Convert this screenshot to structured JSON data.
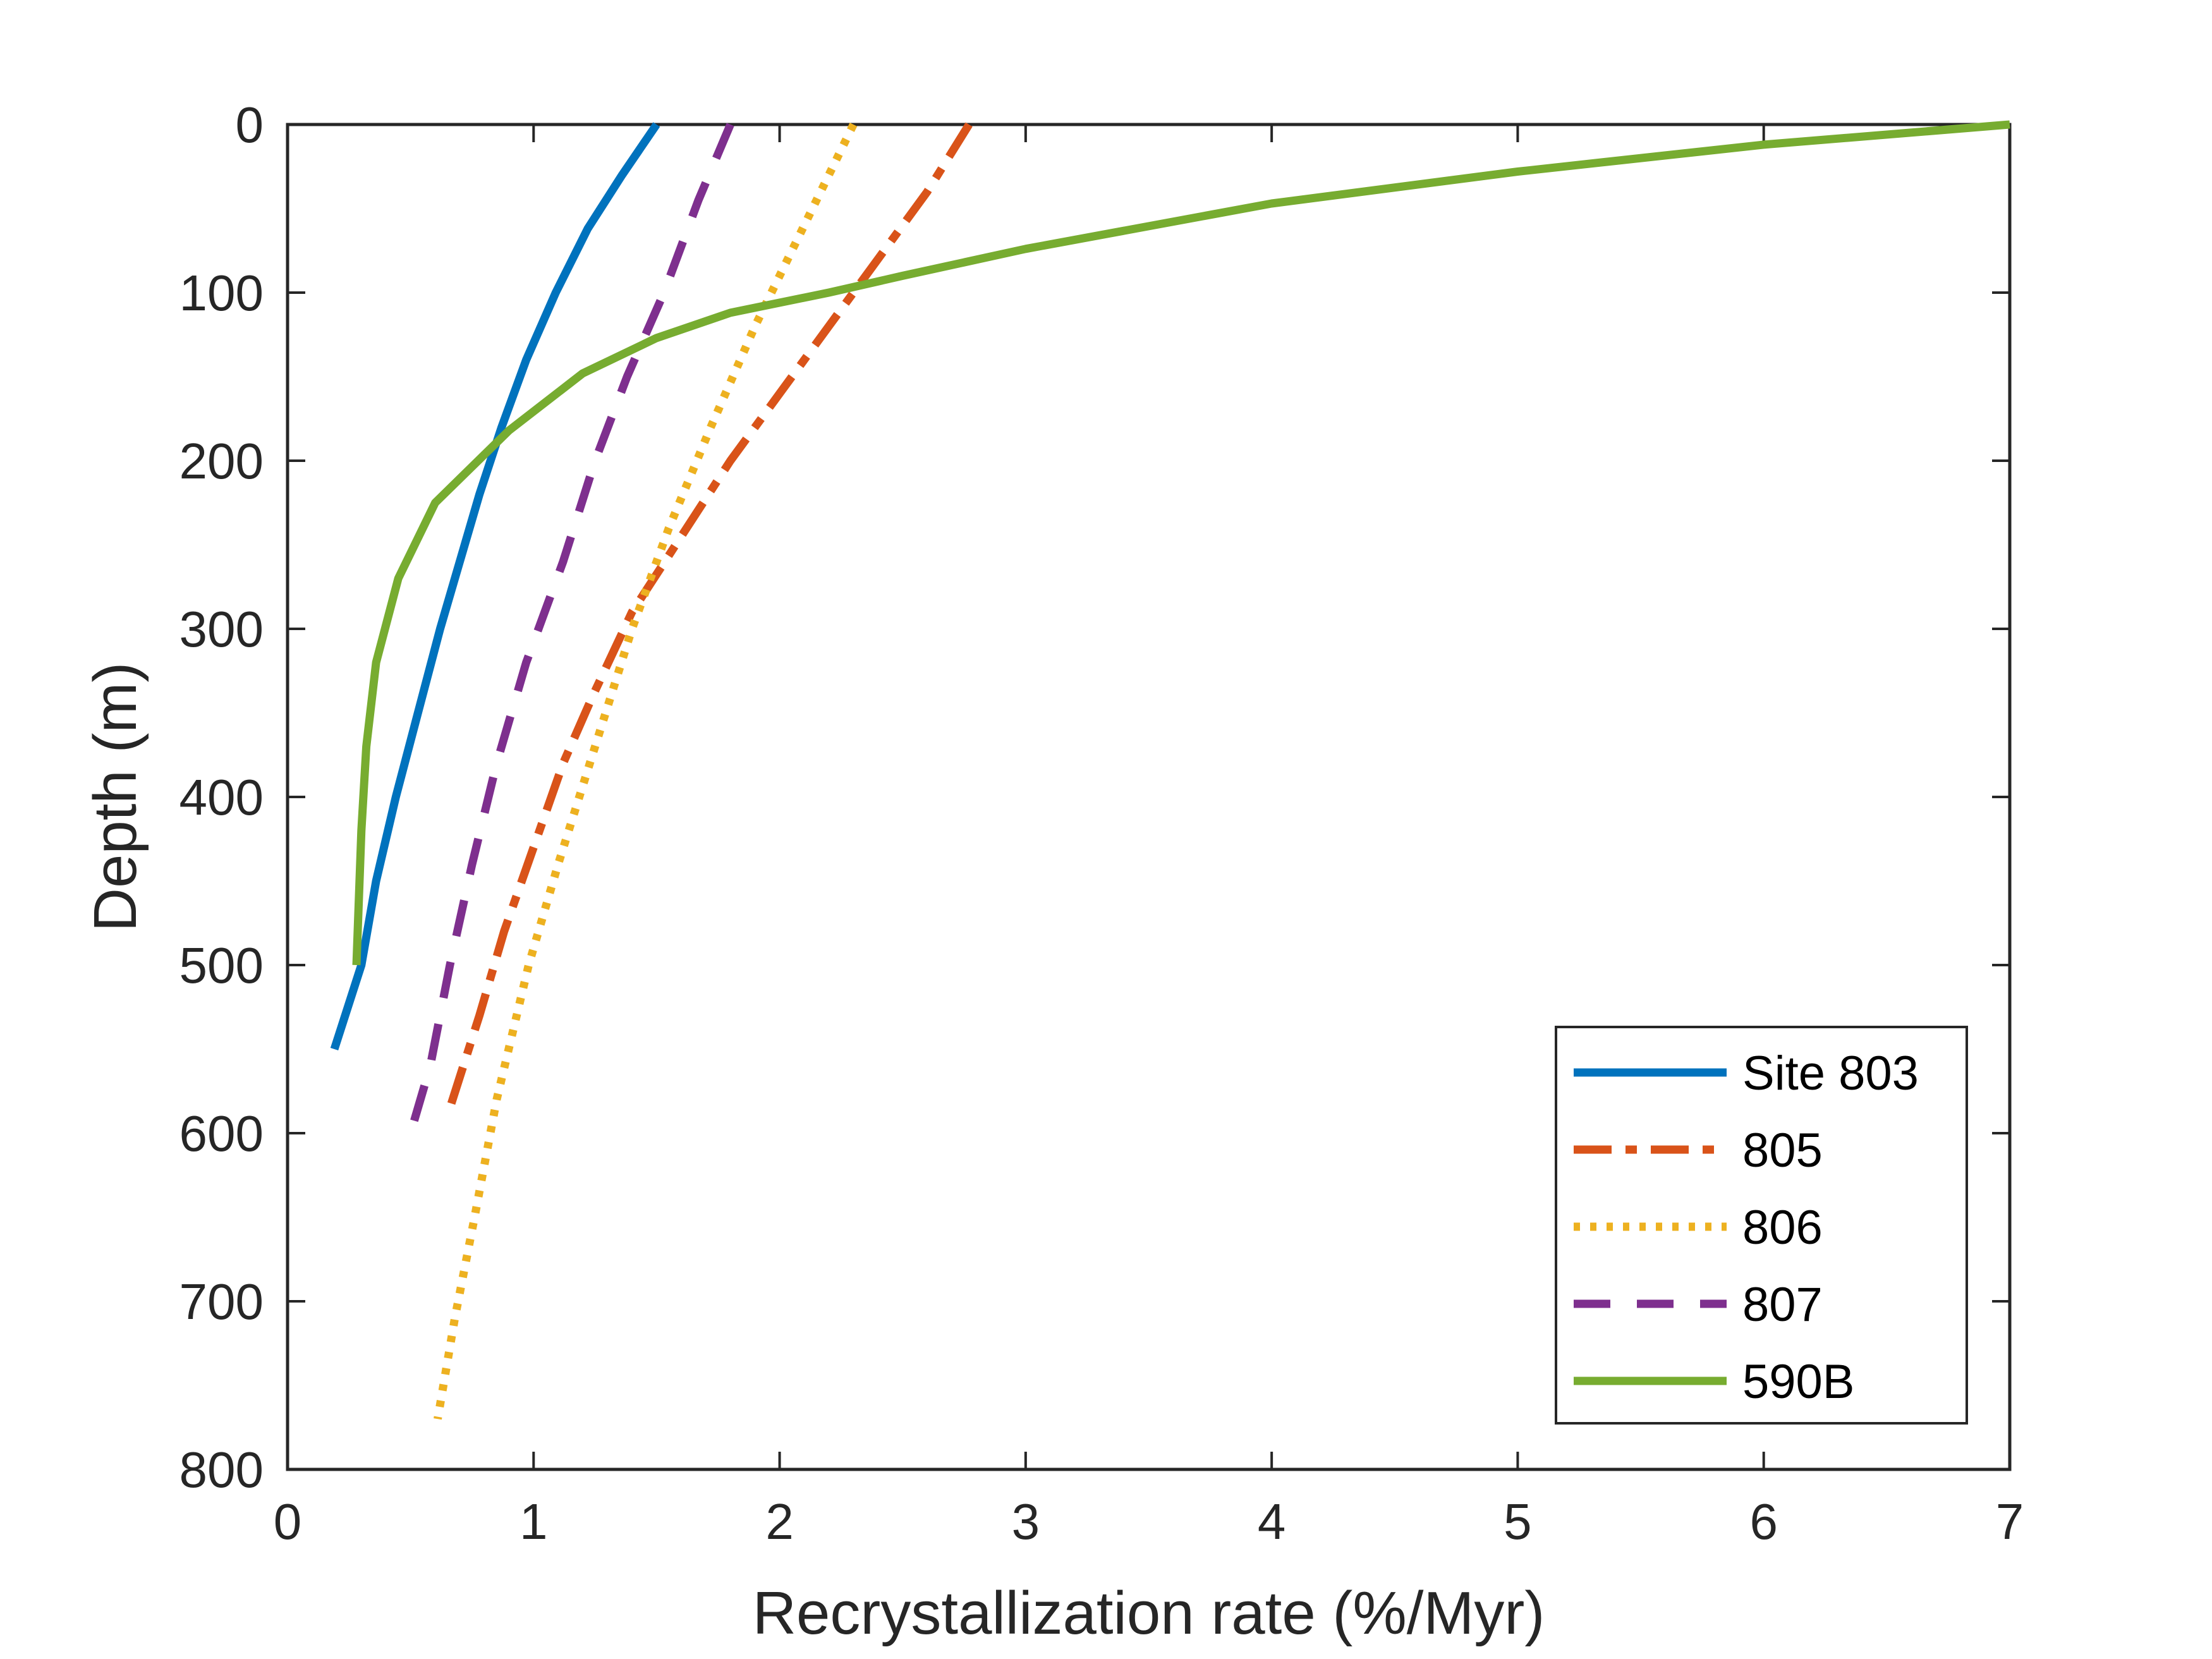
{
  "chart_data": {
    "type": "line",
    "title": "",
    "xlabel": "Recrystallization rate (%/Myr)",
    "ylabel": "Depth (m)",
    "xlim": [
      0,
      7
    ],
    "ylim": [
      0,
      800
    ],
    "y_reversed": true,
    "x_ticks": [
      "0",
      "1",
      "2",
      "3",
      "4",
      "5",
      "6",
      "7"
    ],
    "y_ticks": [
      "0",
      "100",
      "200",
      "300",
      "400",
      "500",
      "600",
      "700",
      "800"
    ],
    "grid": false,
    "legend_position": "bottom-right",
    "series": [
      {
        "name": "Site 803",
        "color": "#0072BD",
        "style": "solid",
        "points": [
          [
            1.5,
            0
          ],
          [
            1.36,
            30
          ],
          [
            1.22,
            62
          ],
          [
            1.09,
            100
          ],
          [
            0.97,
            140
          ],
          [
            0.87,
            180
          ],
          [
            0.78,
            220
          ],
          [
            0.7,
            260
          ],
          [
            0.62,
            300
          ],
          [
            0.53,
            350
          ],
          [
            0.44,
            400
          ],
          [
            0.36,
            450
          ],
          [
            0.3,
            500
          ],
          [
            0.19,
            550
          ]
        ]
      },
      {
        "name": "805",
        "color": "#D95319",
        "style": "dashdot",
        "points": [
          [
            2.77,
            0
          ],
          [
            2.6,
            40
          ],
          [
            2.4,
            80
          ],
          [
            2.2,
            120
          ],
          [
            2.0,
            160
          ],
          [
            1.8,
            200
          ],
          [
            1.6,
            245
          ],
          [
            1.4,
            290
          ],
          [
            1.24,
            340
          ],
          [
            1.12,
            380
          ],
          [
            1.0,
            430
          ],
          [
            0.88,
            480
          ],
          [
            0.78,
            530
          ],
          [
            0.66,
            585
          ]
        ]
      },
      {
        "name": "806",
        "color": "#EDB120",
        "style": "dotted",
        "points": [
          [
            2.3,
            0
          ],
          [
            2.1,
            60
          ],
          [
            1.9,
            120
          ],
          [
            1.72,
            180
          ],
          [
            1.55,
            240
          ],
          [
            1.4,
            300
          ],
          [
            1.25,
            370
          ],
          [
            1.1,
            440
          ],
          [
            0.98,
            500
          ],
          [
            0.85,
            580
          ],
          [
            0.76,
            650
          ],
          [
            0.68,
            710
          ],
          [
            0.61,
            770
          ]
        ]
      },
      {
        "name": "807",
        "color": "#7E2F8E",
        "style": "dashed",
        "points": [
          [
            1.8,
            0
          ],
          [
            1.67,
            45
          ],
          [
            1.53,
            100
          ],
          [
            1.38,
            150
          ],
          [
            1.25,
            200
          ],
          [
            1.12,
            260
          ],
          [
            0.97,
            320
          ],
          [
            0.85,
            380
          ],
          [
            0.75,
            440
          ],
          [
            0.66,
            500
          ],
          [
            0.58,
            560
          ],
          [
            0.5,
            600
          ]
        ]
      },
      {
        "name": "590B",
        "color": "#77AC30",
        "style": "solid",
        "points": [
          [
            7.0,
            0
          ],
          [
            6.0,
            12
          ],
          [
            5.0,
            28
          ],
          [
            4.0,
            47
          ],
          [
            3.0,
            74
          ],
          [
            2.5,
            90
          ],
          [
            2.2,
            100
          ],
          [
            1.8,
            112
          ],
          [
            1.5,
            127
          ],
          [
            1.2,
            148
          ],
          [
            0.9,
            182
          ],
          [
            0.6,
            225
          ],
          [
            0.45,
            270
          ],
          [
            0.36,
            320
          ],
          [
            0.32,
            370
          ],
          [
            0.3,
            420
          ],
          [
            0.29,
            460
          ],
          [
            0.28,
            500
          ]
        ]
      }
    ]
  }
}
